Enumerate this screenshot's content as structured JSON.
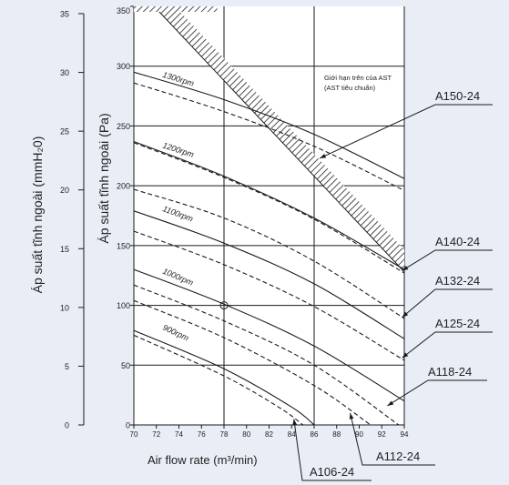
{
  "chart_data": {
    "type": "line",
    "xlabel": "Air flow rate (m³/min)",
    "ylabel_left": "Áp suất tĩnh ngoài (mmH₂0)",
    "ylabel_right": "Áp suất tĩnh ngoài (Pa)",
    "xlim": [
      70,
      94
    ],
    "ylim_pa": [
      0,
      350
    ],
    "ylim_mmh2o": [
      0,
      35
    ],
    "x_ticks": [
      "70",
      "72",
      "74",
      "76",
      "78",
      "80",
      "82",
      "84",
      "86",
      "88",
      "90",
      "92",
      "94"
    ],
    "y_ticks_pa": [
      "0",
      "50",
      "100",
      "150",
      "200",
      "250",
      "300",
      "350"
    ],
    "y_ticks_mmh2o": [
      "0",
      "5",
      "10",
      "15",
      "20",
      "25",
      "30",
      "35"
    ],
    "grid": true,
    "limit_note": [
      "Giới hạn trên của AST",
      "(AST tiêu chuẩn)"
    ],
    "limit_line": {
      "x": [
        70,
        94
      ],
      "y": [
        368,
        128
      ]
    },
    "rpm_labels": [
      {
        "text": "1300rpm",
        "x": 72.5,
        "y": 291
      },
      {
        "text": "1200rpm",
        "x": 72.5,
        "y": 232
      },
      {
        "text": "1100rpm",
        "x": 72.5,
        "y": 179
      },
      {
        "text": "1000rpm",
        "x": 72.5,
        "y": 127
      },
      {
        "text": "900rpm",
        "x": 72.5,
        "y": 80
      }
    ],
    "operating_point": {
      "x": 78,
      "y": 100
    },
    "series": [
      {
        "rpm": "1300rpm",
        "style": "solid",
        "x": [
          70,
          78,
          86,
          94
        ],
        "y": [
          295,
          272,
          243,
          206
        ]
      },
      {
        "rpm": "1300rpm",
        "style": "dashed",
        "x": [
          70,
          78,
          86,
          94
        ],
        "y": [
          286,
          262,
          233,
          196
        ]
      },
      {
        "rpm": "1200rpm",
        "style": "solid",
        "x": [
          70,
          78,
          86,
          94
        ],
        "y": [
          237,
          208,
          173,
          130
        ]
      },
      {
        "rpm": "1200rpm",
        "style": "dashed",
        "x": [
          70,
          78,
          86,
          94
        ],
        "y": [
          236,
          207,
          172,
          127
        ]
      },
      {
        "rpm": "1100rpm",
        "style": "dashed",
        "x": [
          70,
          78,
          86,
          94
        ],
        "y": [
          197,
          173,
          137,
          89
        ]
      },
      {
        "rpm": "1100rpm",
        "style": "solid",
        "x": [
          70,
          78,
          86,
          94
        ],
        "y": [
          179,
          152,
          118,
          72
        ]
      },
      {
        "rpm": "1100rpm",
        "style": "dashed",
        "x": [
          70,
          78,
          86,
          94
        ],
        "y": [
          162,
          134,
          99,
          54
        ]
      },
      {
        "rpm": "1000rpm",
        "style": "solid",
        "x": [
          70,
          78,
          86,
          94
        ],
        "y": [
          130,
          101,
          66,
          20
        ]
      },
      {
        "rpm": "1000rpm",
        "style": "dashed",
        "x": [
          70,
          78,
          86,
          93.5
        ],
        "y": [
          117,
          87,
          50,
          0
        ]
      },
      {
        "rpm": "1000rpm",
        "style": "dashed",
        "x": [
          70,
          78,
          86,
          91
        ],
        "y": [
          104,
          73,
          33,
          0
        ]
      },
      {
        "rpm": "900rpm",
        "style": "solid",
        "x": [
          70,
          78,
          84,
          86
        ],
        "y": [
          79,
          47,
          15,
          0
        ]
      },
      {
        "rpm": "900rpm",
        "style": "dashed",
        "x": [
          70,
          78,
          83,
          85
        ],
        "y": [
          75,
          41,
          14,
          0
        ]
      }
    ],
    "models": [
      {
        "name": "A150-24",
        "anchor": [
          86.5,
          223
        ]
      },
      {
        "name": "A140-24",
        "anchor": [
          93.8,
          129
        ]
      },
      {
        "name": "A132-24",
        "anchor": [
          93.8,
          90
        ]
      },
      {
        "name": "A125-24",
        "anchor": [
          93.8,
          56
        ]
      },
      {
        "name": "A118-24",
        "anchor": [
          92.5,
          16
        ]
      },
      {
        "name": "A112-24",
        "anchor": [
          89.2,
          10
        ]
      },
      {
        "name": "A106-24",
        "anchor": [
          84.2,
          5
        ]
      }
    ],
    "colors": {
      "background": "#e9edf6",
      "plot": "#ffffff",
      "line": "#1a1a1a"
    }
  }
}
